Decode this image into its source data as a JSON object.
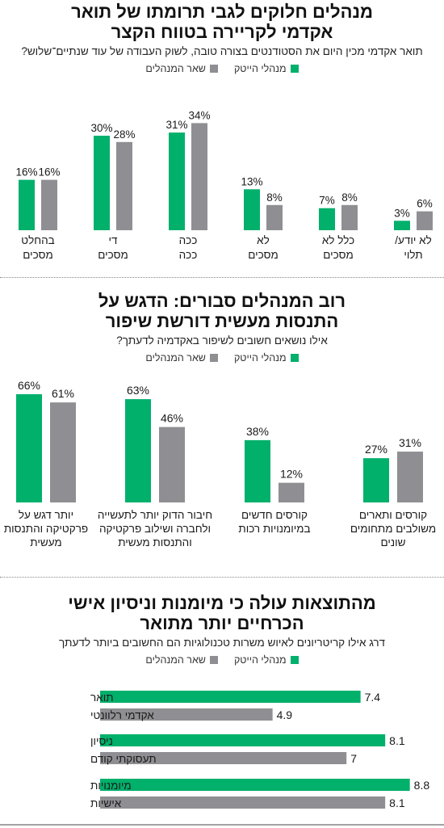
{
  "colors": {
    "hitech": "#00b06b",
    "other": "#8f8f93"
  },
  "legend": {
    "hitech": "מנהלי הייטק",
    "other": "שאר המנהלים"
  },
  "chart_data": [
    {
      "type": "bar",
      "title": "מנהלים חלוקים לגבי תרומתו של תואר אקדמי לקריירה בטווח הקצר",
      "subtitle": "תואר אקדמי מכין היום את הסטודנטים בצורה טובה, לשוק העבודה של עוד שנתיים־שלוש?",
      "categories": [
        [
          "בהחלט",
          "מסכים"
        ],
        [
          "די",
          "מסכים"
        ],
        [
          "ככה",
          "ככה"
        ],
        [
          "לא",
          "מסכים"
        ],
        [
          "כלל לא",
          "מסכים"
        ],
        [
          "לא יודע/",
          "תלוי"
        ]
      ],
      "series": [
        {
          "name": "מנהלי הייטק",
          "values": [
            16,
            30,
            31,
            13,
            7,
            3
          ]
        },
        {
          "name": "שאר המנהלים",
          "values": [
            16,
            28,
            34,
            8,
            8,
            6
          ]
        }
      ],
      "unit": "%"
    },
    {
      "type": "bar",
      "title": "רוב המנהלים סבורים: הדגש על התנסות מעשית דורשת שיפור",
      "subtitle": "אילו נושאים חשובים לשיפור באקדמיה לדעתך?",
      "categories": [
        [
          "יותר דגש על",
          "פרקטיקה והתנסות",
          "מעשית"
        ],
        [
          "חיבור הדוק יותר לתעשייה",
          "ולחברה ושילוב פרקטיקה",
          "והתנסות מעשית"
        ],
        [
          "קורסים חדשים",
          "במיומנויות רכות"
        ],
        [
          "קורסים ותארים",
          "משולבים מתחומים",
          "שונים"
        ]
      ],
      "series": [
        {
          "name": "מנהלי הייטק",
          "values": [
            66,
            63,
            38,
            27
          ]
        },
        {
          "name": "שאר המנהלים",
          "values": [
            61,
            46,
            12,
            31
          ]
        }
      ],
      "unit": "%"
    },
    {
      "type": "bar",
      "orientation": "horizontal",
      "title": "מהתוצאות עולה כי מיומנות וניסיון אישי הכרחיים יותר מתואר",
      "subtitle": "דרג אילו קריטריונים לאיוש משרות טכנולוגיות הם החשובים ביותר לדעתך",
      "categories": [
        [
          "תואר",
          "אקדמי רלוונטי"
        ],
        [
          "ניסיון",
          "תעסוקתי קודם"
        ],
        [
          "מיומנויות",
          "אישיות"
        ]
      ],
      "series": [
        {
          "name": "מנהלי הייטק",
          "values": [
            7.4,
            8.1,
            8.8
          ]
        },
        {
          "name": "שאר המנהלים",
          "values": [
            4.9,
            7,
            8.1
          ]
        }
      ]
    }
  ]
}
